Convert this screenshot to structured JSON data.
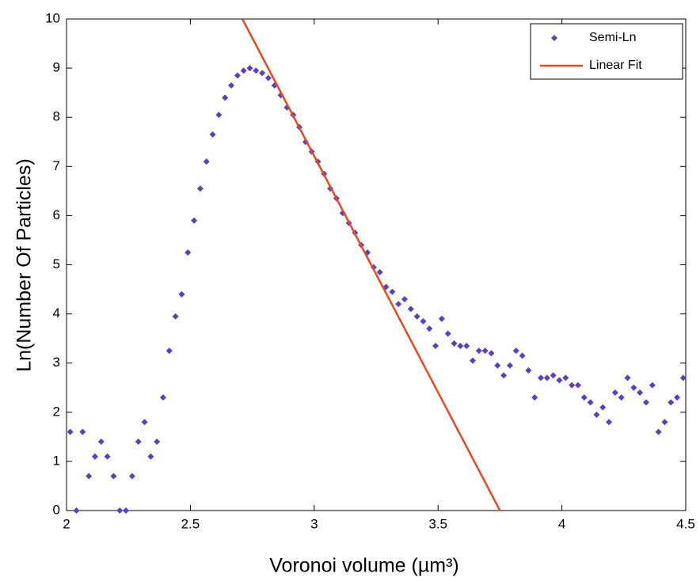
{
  "chart_data": {
    "type": "scatter",
    "xlabel": "Voronoi volume (µm³)",
    "ylabel": "Ln(Number Of Particles)",
    "xlim": [
      2,
      4.5
    ],
    "ylim": [
      0,
      10
    ],
    "xticks": [
      2,
      2.5,
      3,
      3.5,
      4,
      4.5
    ],
    "yticks": [
      0,
      1,
      2,
      3,
      4,
      5,
      6,
      7,
      8,
      9,
      10
    ],
    "grid": false,
    "legend": "northeast",
    "series": [
      {
        "name": "Semi-Ln",
        "type": "scatter",
        "color": "#5b3ec8",
        "x": [
          2.015,
          2.04,
          2.065,
          2.09,
          2.115,
          2.14,
          2.165,
          2.19,
          2.215,
          2.24,
          2.265,
          2.29,
          2.315,
          2.34,
          2.365,
          2.39,
          2.415,
          2.44,
          2.465,
          2.49,
          2.515,
          2.54,
          2.565,
          2.59,
          2.615,
          2.64,
          2.665,
          2.69,
          2.715,
          2.74,
          2.765,
          2.79,
          2.815,
          2.84,
          2.865,
          2.89,
          2.915,
          2.94,
          2.965,
          2.99,
          3.015,
          3.04,
          3.065,
          3.09,
          3.115,
          3.14,
          3.165,
          3.19,
          3.215,
          3.24,
          3.265,
          3.29,
          3.315,
          3.34,
          3.365,
          3.39,
          3.415,
          3.44,
          3.465,
          3.49,
          3.515,
          3.54,
          3.565,
          3.59,
          3.615,
          3.64,
          3.665,
          3.69,
          3.715,
          3.74,
          3.765,
          3.79,
          3.815,
          3.84,
          3.865,
          3.89,
          3.915,
          3.94,
          3.965,
          3.99,
          4.015,
          4.04,
          4.065,
          4.09,
          4.115,
          4.14,
          4.165,
          4.19,
          4.215,
          4.24,
          4.265,
          4.29,
          4.315,
          4.34,
          4.365,
          4.39,
          4.415,
          4.44,
          4.465,
          4.49
        ],
        "values": [
          1.6,
          0,
          1.6,
          0.7,
          1.1,
          1.4,
          1.1,
          0.7,
          0,
          0,
          0.7,
          1.4,
          1.8,
          1.1,
          1.4,
          2.3,
          3.25,
          3.95,
          4.4,
          5.25,
          5.9,
          6.55,
          7.1,
          7.65,
          8.05,
          8.4,
          8.65,
          8.85,
          8.95,
          9.0,
          8.95,
          8.9,
          8.8,
          8.65,
          8.45,
          8.2,
          8.05,
          7.8,
          7.5,
          7.3,
          7.1,
          6.85,
          6.55,
          6.35,
          6.05,
          5.85,
          5.65,
          5.4,
          5.25,
          4.95,
          4.85,
          4.55,
          4.45,
          4.2,
          4.3,
          4.1,
          3.95,
          3.85,
          3.7,
          3.35,
          3.9,
          3.6,
          3.4,
          3.35,
          3.35,
          3.05,
          3.25,
          3.25,
          3.2,
          2.95,
          2.75,
          2.95,
          3.25,
          3.15,
          2.85,
          2.3,
          2.7,
          2.7,
          2.75,
          2.65,
          2.7,
          2.55,
          2.55,
          2.3,
          2.2,
          1.95,
          2.1,
          1.8,
          2.4,
          2.3,
          2.7,
          2.5,
          2.4,
          2.2,
          2.55,
          1.6,
          1.8,
          2.2,
          2.3,
          2.7
        ]
      },
      {
        "name": "Linear Fit",
        "type": "line",
        "color": "#e8491e",
        "x": [
          2.71,
          3.75
        ],
        "values": [
          10,
          0
        ]
      }
    ]
  }
}
